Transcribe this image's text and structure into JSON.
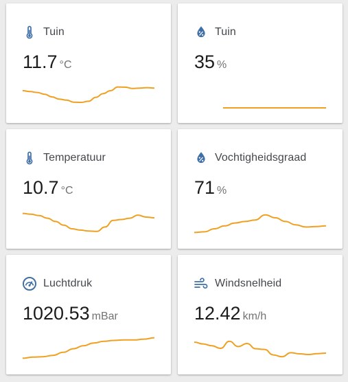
{
  "colors": {
    "line": "#f0a020",
    "icon": "#3f6fa6",
    "card": "#ffffff",
    "background": "#ececec"
  },
  "cards": [
    {
      "name": "Tuin",
      "value": "11.7",
      "unit": "°C",
      "icon": "thermometer-icon",
      "history": [
        0.78,
        0.74,
        0.7,
        0.62,
        0.5,
        0.4,
        0.35,
        0.26,
        0.25,
        0.3,
        0.48,
        0.65,
        0.78,
        0.95,
        0.94,
        0.88,
        0.9,
        0.92,
        0.9
      ]
    },
    {
      "name": "Tuin",
      "value": "35",
      "unit": "%",
      "icon": "water-percent-icon",
      "history": [
        0.0,
        0.0,
        0.0,
        0.0,
        0.0,
        0.0,
        0.0,
        0.0,
        0.0,
        0.0,
        0.0,
        0.0,
        0.0,
        0.0,
        0.0,
        0.0
      ]
    },
    {
      "name": "Temperatuur",
      "value": "10.7",
      "unit": "°C",
      "icon": "thermometer-icon",
      "history": [
        0.92,
        0.88,
        0.82,
        0.7,
        0.55,
        0.38,
        0.22,
        0.16,
        0.12,
        0.1,
        0.3,
        0.6,
        0.64,
        0.7,
        0.84,
        0.75,
        0.72
      ]
    },
    {
      "name": "Vochtigheidsgraad",
      "value": "71",
      "unit": "%",
      "icon": "water-percent-icon",
      "history": [
        0.05,
        0.08,
        0.22,
        0.35,
        0.48,
        0.55,
        0.62,
        0.85,
        0.72,
        0.55,
        0.4,
        0.3,
        0.32,
        0.35
      ]
    },
    {
      "name": "Luchtdruk",
      "value": "1020.53",
      "unit": "mBar",
      "icon": "gauge-icon",
      "history": [
        0.05,
        0.1,
        0.12,
        0.18,
        0.32,
        0.48,
        0.62,
        0.74,
        0.82,
        0.86,
        0.88,
        0.88,
        0.92,
        0.98
      ]
    },
    {
      "name": "Windsnelheid",
      "value": "12.42",
      "unit": "km/h",
      "icon": "weather-windy-icon",
      "history": [
        0.78,
        0.7,
        0.62,
        0.5,
        0.82,
        0.58,
        0.72,
        0.48,
        0.45,
        0.2,
        0.12,
        0.3,
        0.25,
        0.22,
        0.26,
        0.28
      ]
    }
  ]
}
